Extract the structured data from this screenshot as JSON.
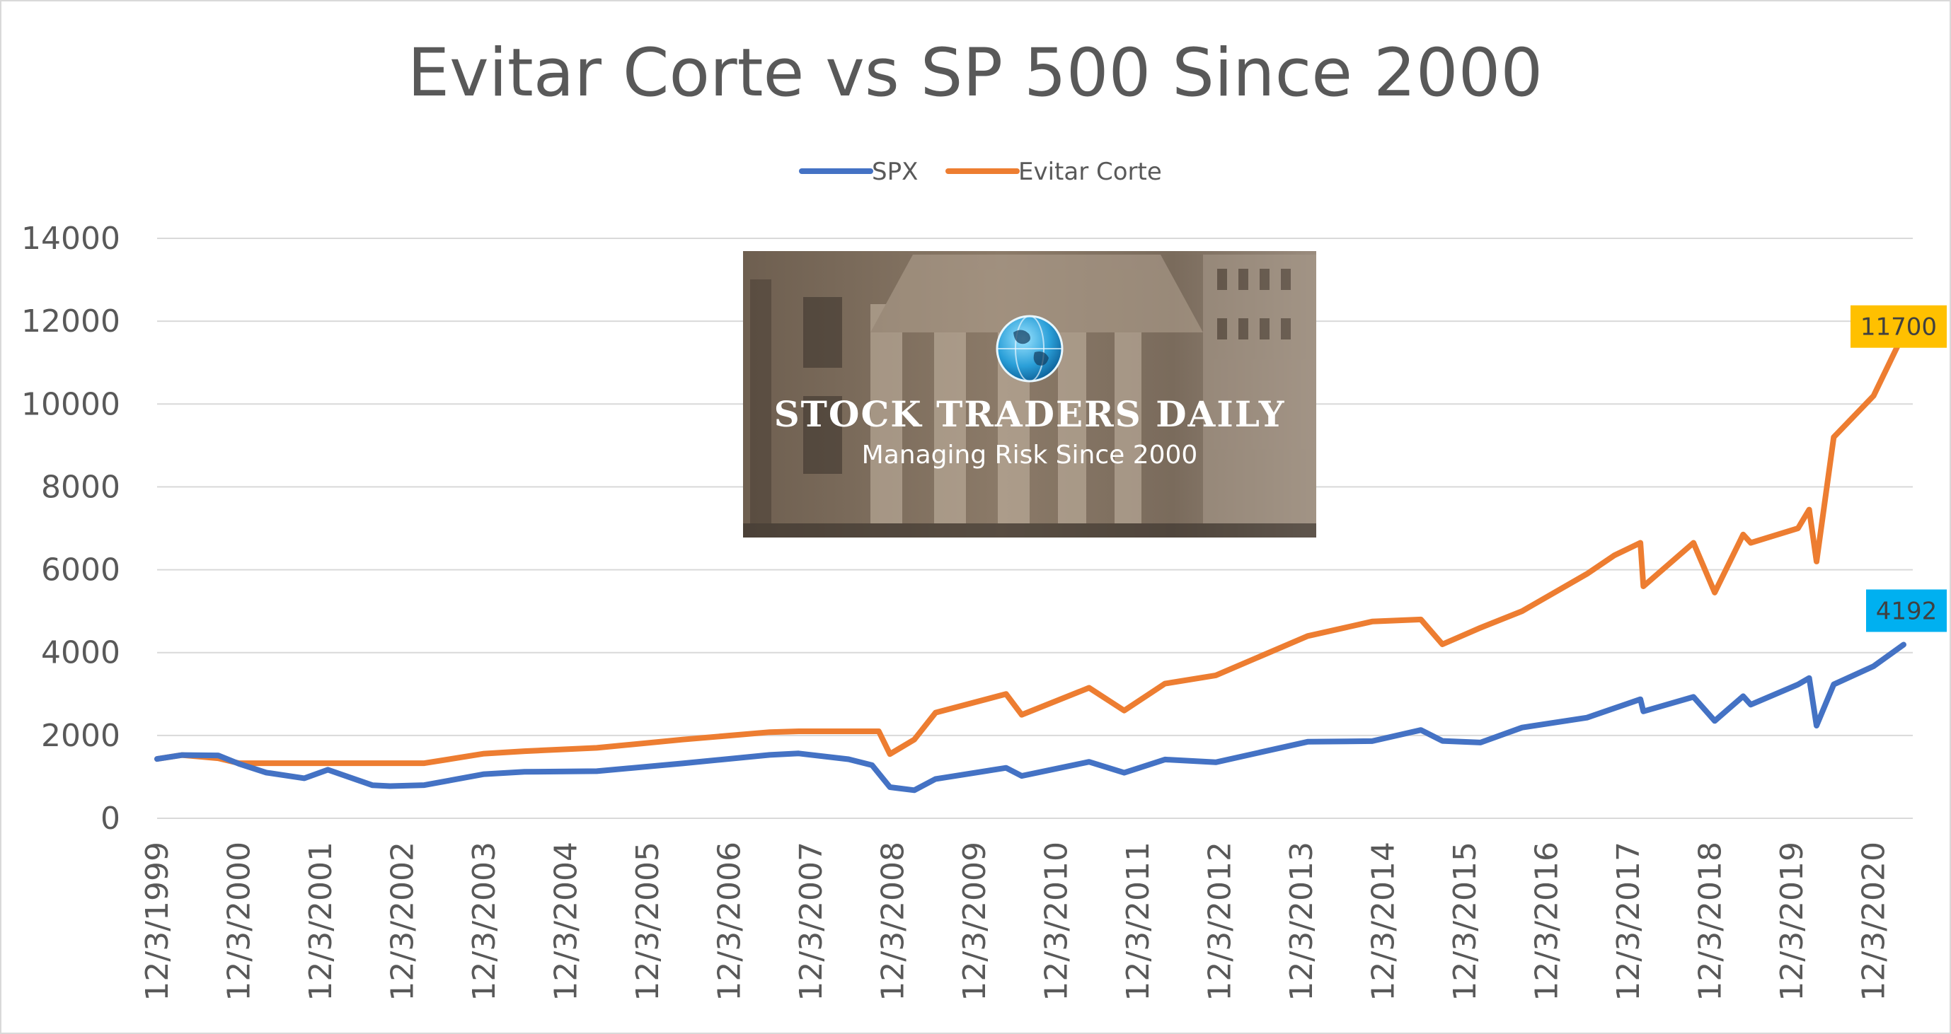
{
  "chart_data": {
    "type": "line",
    "title": "Evitar Corte vs SP 500 Since 2000",
    "xlabel": "",
    "ylabel": "",
    "ylim": [
      0,
      14000
    ],
    "yticks": [
      "0",
      "2000",
      "4000",
      "6000",
      "8000",
      "10000",
      "12000",
      "14000"
    ],
    "xticks": [
      "12/3/1999",
      "12/3/2000",
      "12/3/2001",
      "12/3/2002",
      "12/3/2003",
      "12/3/2004",
      "12/3/2005",
      "12/3/2006",
      "12/3/2007",
      "12/3/2008",
      "12/3/2009",
      "12/3/2010",
      "12/3/2011",
      "12/3/2012",
      "12/3/2013",
      "12/3/2014",
      "12/3/2015",
      "12/3/2016",
      "12/3/2017",
      "12/3/2018",
      "12/3/2019",
      "12/3/2020"
    ],
    "grid": true,
    "legend": "top-center",
    "series": [
      {
        "name": "SPX",
        "color": "#4472C4",
        "x": [
          "1999-12-03",
          "2000-03-24",
          "2000-09-01",
          "2000-12-03",
          "2001-04-04",
          "2001-09-21",
          "2002-01-04",
          "2002-07-23",
          "2002-10-09",
          "2003-03-11",
          "2003-12-03",
          "2004-06-01",
          "2005-04-20",
          "2006-05-08",
          "2007-06-01",
          "2007-10-09",
          "2008-05-19",
          "2008-09-01",
          "2008-11-20",
          "2009-03-09",
          "2009-06-12",
          "2010-04-23",
          "2010-07-02",
          "2011-04-29",
          "2011-10-03",
          "2012-04-02",
          "2012-11-15",
          "2013-12-31",
          "2014-10-15",
          "2015-05-21",
          "2015-08-25",
          "2016-02-11",
          "2016-08-15",
          "2017-06-01",
          "2018-01-26",
          "2018-02-08",
          "2018-09-20",
          "2018-12-24",
          "2019-04-30",
          "2019-06-03",
          "2019-12-31",
          "2020-02-19",
          "2020-03-23",
          "2020-06-08",
          "2020-12-03",
          "2021-04-16"
        ],
        "values": [
          1433,
          1527,
          1517,
          1316,
          1103,
          966,
          1172,
          797,
          777,
          800,
          1066,
          1121,
          1137,
          1325,
          1530,
          1565,
          1426,
          1282,
          752,
          677,
          950,
          1217,
          1022,
          1363,
          1099,
          1419,
          1353,
          1848,
          1862,
          2131,
          1867,
          1829,
          2190,
          2430,
          2873,
          2581,
          2930,
          2351,
          2946,
          2744,
          3231,
          3386,
          2237,
          3232,
          3670,
          4192
        ]
      },
      {
        "name": "Evitar Corte",
        "color": "#ED7D31",
        "x": [
          "1999-12-03",
          "2000-03-24",
          "2000-09-01",
          "2000-12-03",
          "2002-10-09",
          "2003-03-11",
          "2003-12-03",
          "2004-06-01",
          "2005-04-20",
          "2006-05-08",
          "2007-06-01",
          "2007-10-09",
          "2008-10-01",
          "2008-11-20",
          "2009-03-09",
          "2009-06-12",
          "2010-04-23",
          "2010-07-02",
          "2011-04-29",
          "2011-10-03",
          "2012-04-02",
          "2012-11-15",
          "2013-12-31",
          "2014-10-15",
          "2015-05-21",
          "2015-08-25",
          "2016-02-11",
          "2016-08-15",
          "2017-06-01",
          "2017-10-02",
          "2018-01-26",
          "2018-02-08",
          "2018-09-20",
          "2018-12-24",
          "2019-04-30",
          "2019-06-03",
          "2019-12-31",
          "2020-02-19",
          "2020-03-23",
          "2020-06-08",
          "2020-12-03",
          "2021-04-16"
        ],
        "values": [
          1433,
          1527,
          1450,
          1330,
          1330,
          1330,
          1560,
          1620,
          1700,
          1900,
          2080,
          2100,
          2100,
          1550,
          1900,
          2550,
          3000,
          2500,
          3150,
          2600,
          3250,
          3450,
          4400,
          4750,
          4800,
          4200,
          4600,
          5000,
          5900,
          6350,
          6650,
          5600,
          6650,
          5450,
          6850,
          6650,
          7000,
          7450,
          6200,
          9200,
          10200,
          11700
        ]
      }
    ],
    "end_labels": [
      {
        "series": "Evitar Corte",
        "text": "11700",
        "color": "#FFC000"
      },
      {
        "series": "SPX",
        "text": "4192",
        "color": "#00B0F0"
      }
    ],
    "banner": {
      "line1": "STOCK TRADERS DAILY",
      "line2": "Managing Risk Since 2000",
      "icon": "globe-icon"
    }
  }
}
